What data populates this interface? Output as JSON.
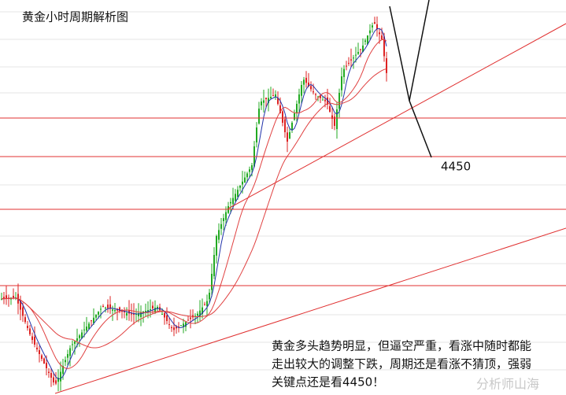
{
  "title": "黄金小时周期解析图",
  "level_label": "4450",
  "annotation": [
    "黄金多头趋势明显，但逼空严重，看涨中随时都能",
    "走出较大的调整下跌，周期还是看涨不猜顶，强弱",
    "关键点还是看4450！"
  ],
  "watermark": "分析师山海"
}
